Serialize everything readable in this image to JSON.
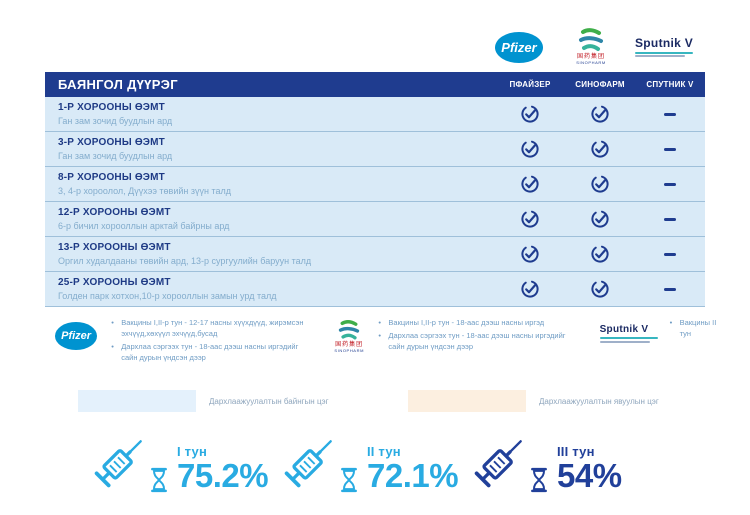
{
  "logos": {
    "pfizer": "Pfizer",
    "sinopharm_cn": "国药集团",
    "sinopharm_en": "SINOPHARM",
    "sputnik": "Sputnik V"
  },
  "header": {
    "title": "БАЯНГОЛ ДҮҮРЭГ",
    "columns": [
      "ПФАЙЗЕР",
      "СИНОФАРМ",
      "СПУТНИК V"
    ]
  },
  "rows": [
    {
      "title": "1-Р ХОРООНЫ ӨЭМТ",
      "subtitle": "Ган зам зочид буудлын ард",
      "pfizer": true,
      "sinopharm": true,
      "sputnik": false
    },
    {
      "title": "3-Р ХОРООНЫ ӨЭМТ",
      "subtitle": "Ган зам зочид буудлын ард",
      "pfizer": true,
      "sinopharm": true,
      "sputnik": false
    },
    {
      "title": "8-Р ХОРООНЫ ӨЭМТ",
      "subtitle": "3, 4-р хороолол, Дүүхээ төвийн зүүн талд",
      "pfizer": true,
      "sinopharm": true,
      "sputnik": false
    },
    {
      "title": "12-Р ХОРООНЫ ӨЭМТ",
      "subtitle": "6-р бичил хорооллын арктай байрны ард",
      "pfizer": true,
      "sinopharm": true,
      "sputnik": false
    },
    {
      "title": "13-Р ХОРООНЫ ӨЭМТ",
      "subtitle": "Оргил худалдааны төвийн ард, 13-р сургуулийн баруун талд",
      "pfizer": true,
      "sinopharm": true,
      "sputnik": false
    },
    {
      "title": "25-Р ХОРООНЫ ӨЭМТ",
      "subtitle": "Голден парк хотхон,10-р хорооллын замын урд талд",
      "pfizer": true,
      "sinopharm": true,
      "sputnik": false
    }
  ],
  "legend": {
    "pfizer": [
      "Вакцины I,II-р тун - 12-17 насны хүүхдүүд, жирэмсэн эхчүүд,хөхүүл эхчүүд,бусад",
      "Дархлаа сэргээх тун - 18-аас дээш насны иргэдийг сайн дурын үндсэн дээр"
    ],
    "sinopharm": [
      "Вакцины I,II-р тун - 18-аас дээш насны иргэд",
      "Дархлаа сэргээх тун - 18-аас дээш насны иргэдийг сайн дурын үндсэн дээр"
    ],
    "sputnik": [
      "Вакцины II тун"
    ]
  },
  "color_key": [
    {
      "label": "Дархлаажуулалтын байнгын цэг",
      "color": "#e4f1fc"
    },
    {
      "label": "Дархлаажуулалтын явуулын цэг",
      "color": "#fcefe0"
    }
  ],
  "stats": [
    {
      "dose": "I тун",
      "value": "75.2%",
      "color": "#29abe2"
    },
    {
      "dose": "II тун",
      "value": "72.1%",
      "color": "#29abe2"
    },
    {
      "dose": "III тун",
      "value": "54%",
      "color": "#21409a"
    }
  ],
  "colors": {
    "header_bar": "#1f3c8f",
    "row_background": "#d9eaf7",
    "navy": "#21409a",
    "cyan": "#29abe2",
    "pfizer_blue": "#0093d0"
  }
}
